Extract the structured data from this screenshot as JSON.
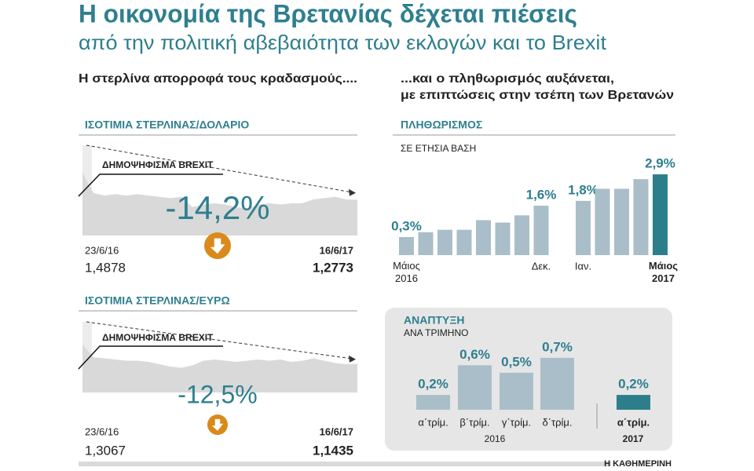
{
  "header": {
    "title": "Η οικονομία της Βρετανίας δέχεται πιέσεις",
    "subtitle": "από την πολιτική αβεβαιότητα των εκλογών και το Brexit",
    "left_heading": "Η στερλίνα απορροφά τους κραδασμούς....",
    "right_heading": [
      "...και ο πληθωρισμός αυξάνεται,",
      "με επιπτώσεις στην τσέπη των Βρετανών"
    ],
    "source": "Η ΚΑΘΗΜΕΡΙΝΗ"
  },
  "chart_data": [
    {
      "type": "area",
      "title": "ΙΣΟΤΙΜΙΑ ΣΤΕΡΛΙΝΑΣ/ΔΟΛΑΡΙΟ",
      "annotation": "ΔΗΜΟΨΗΦΙΣΜΑ BREXIT",
      "change": {
        "value": -14.2,
        "label": "-14,2%"
      },
      "categories": [
        "23/6/16",
        null,
        null,
        null,
        null,
        null,
        null,
        null,
        null,
        null,
        null,
        null,
        null,
        null,
        null,
        null,
        null,
        null,
        null,
        null,
        null,
        null,
        null,
        null,
        null,
        "16/6/17"
      ],
      "values": [
        1.4878,
        1.33,
        1.31,
        1.32,
        1.31,
        1.32,
        1.31,
        1.3,
        1.29,
        1.3,
        1.22,
        1.24,
        1.25,
        1.24,
        1.22,
        1.21,
        1.24,
        1.25,
        1.24,
        1.25,
        1.25,
        1.28,
        1.29,
        1.3,
        1.28,
        1.2773
      ],
      "value_labels": [
        "1,4878",
        null,
        null,
        null,
        null,
        null,
        null,
        null,
        null,
        null,
        null,
        null,
        null,
        null,
        null,
        null,
        null,
        null,
        null,
        null,
        null,
        null,
        null,
        null,
        null,
        "1,2773"
      ],
      "ylim": [
        1.0,
        1.7
      ],
      "color": "#d9d9d9"
    },
    {
      "type": "area",
      "title": "ΙΣΟΤΙΜΙΑ ΣΤΕΡΛΙΝΑΣ/ΕΥΡΩ",
      "annotation": "ΔΗΜΟΨΗΦΙΣΜΑ BREXIT",
      "change": {
        "value": -12.5,
        "label": "-12,5%"
      },
      "categories": [
        "23/6/16",
        null,
        null,
        null,
        null,
        null,
        null,
        null,
        null,
        null,
        null,
        null,
        null,
        null,
        null,
        null,
        null,
        null,
        null,
        null,
        null,
        null,
        null,
        null,
        null,
        "16/6/17"
      ],
      "values": [
        1.3067,
        1.2,
        1.19,
        1.18,
        1.17,
        1.17,
        1.16,
        1.14,
        1.12,
        1.11,
        1.13,
        1.17,
        1.18,
        1.17,
        1.16,
        1.17,
        1.18,
        1.17,
        1.18,
        1.16,
        1.17,
        1.19,
        1.17,
        1.15,
        1.14,
        1.1435
      ],
      "value_labels": [
        "1,3067",
        null,
        null,
        null,
        null,
        null,
        null,
        null,
        null,
        null,
        null,
        null,
        null,
        null,
        null,
        null,
        null,
        null,
        null,
        null,
        null,
        null,
        null,
        null,
        null,
        "1,1435"
      ],
      "ylim": [
        0.9,
        1.5
      ],
      "color": "#d9d9d9"
    },
    {
      "type": "bar",
      "title": "ΠΛΗΘΩΡΙΣΜΟΣ",
      "subtitle": "ΣΕ ΕΤΗΣΙΑ ΒΑΣΗ",
      "categories": [
        "Μάιος\n2016",
        null,
        null,
        null,
        null,
        null,
        null,
        "Δεκ.",
        "Ιαν.",
        null,
        null,
        null,
        "Μάιος\n2017"
      ],
      "values": [
        0.3,
        0.5,
        0.6,
        0.6,
        1.0,
        0.9,
        1.2,
        1.6,
        1.8,
        2.3,
        2.3,
        2.7,
        2.9
      ],
      "value_labels": [
        "0,3%",
        null,
        null,
        null,
        null,
        null,
        null,
        "1,6%",
        "1,8%",
        null,
        null,
        null,
        "2,9%"
      ],
      "colors": [
        "#a9bec8",
        "#a9bec8",
        "#a9bec8",
        "#a9bec8",
        "#a9bec8",
        "#a9bec8",
        "#a9bec8",
        "#a9bec8",
        "#a9bec8",
        "#a9bec8",
        "#a9bec8",
        "#a9bec8",
        "#2c7f8a"
      ],
      "ylim": [
        -0.45,
        3.0
      ]
    },
    {
      "type": "bar",
      "title": "ΑΝΑΠΤΥΞΗ",
      "subtitle": "ΑΝΑ ΤΡΙΜΗΝΟ",
      "categories": [
        "α΄τρίμ.",
        "β΄τρίμ.",
        "γ΄τρίμ.",
        "δ΄τρίμ.",
        "α΄τρίμ."
      ],
      "group_labels": [
        "2016",
        "2017"
      ],
      "values": [
        0.2,
        0.6,
        0.5,
        0.7,
        0.2
      ],
      "value_labels": [
        "0,2%",
        "0,6%",
        "0,5%",
        "0,7%",
        "0,2%"
      ],
      "colors": [
        "#a9bec8",
        "#a9bec8",
        "#a9bec8",
        "#a9bec8",
        "#2c7f8a"
      ],
      "ylim": [
        0,
        0.72
      ]
    }
  ]
}
